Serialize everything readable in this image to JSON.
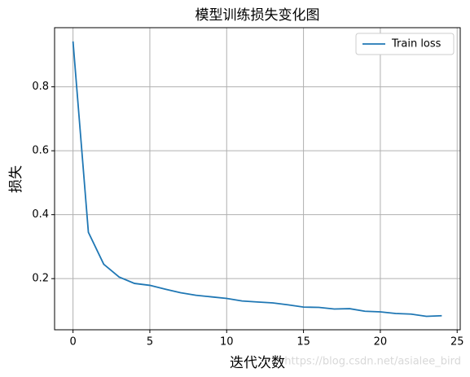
{
  "chart_data": {
    "type": "line",
    "title": "模型训练损失变化图",
    "x_label": "迭代次数",
    "y_label": "损失",
    "x": [
      0,
      1,
      2,
      3,
      4,
      5,
      6,
      7,
      8,
      9,
      10,
      11,
      12,
      13,
      14,
      15,
      16,
      17,
      18,
      19,
      20,
      21,
      22,
      23,
      24
    ],
    "series": [
      {
        "name": "Train loss",
        "color": "#1f77b4",
        "values": [
          0.942,
          0.345,
          0.245,
          0.205,
          0.185,
          0.179,
          0.167,
          0.156,
          0.148,
          0.143,
          0.138,
          0.13,
          0.127,
          0.124,
          0.118,
          0.111,
          0.11,
          0.105,
          0.106,
          0.098,
          0.096,
          0.091,
          0.089,
          0.082,
          0.084
        ]
      }
    ],
    "xlim": [
      -1.2,
      25.2
    ],
    "ylim": [
      0.04,
      0.985
    ],
    "xticks": [
      0,
      5,
      10,
      15,
      20,
      25
    ],
    "yticks": [
      0.2,
      0.4,
      0.6,
      0.8
    ],
    "grid": true,
    "legend_position": "upper-right",
    "watermark": "https://blog.csdn.net/asialee_bird"
  }
}
